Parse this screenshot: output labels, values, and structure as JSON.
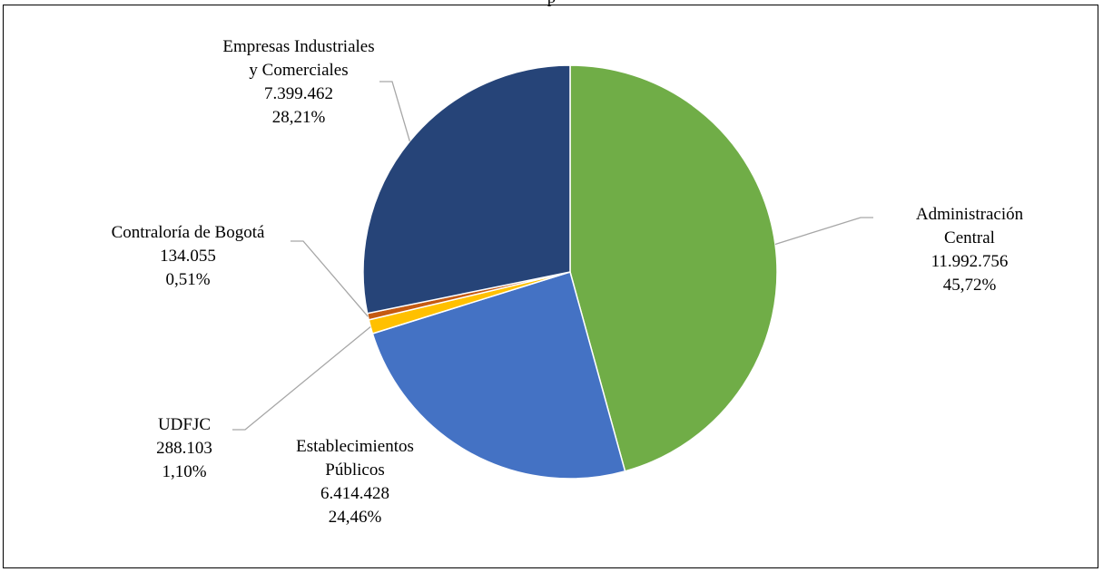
{
  "title_fragment": "p",
  "chart_data": {
    "type": "pie",
    "title": "",
    "start_angle_deg": 0,
    "direction": "clockwise",
    "slices": [
      {
        "label_lines": [
          "Administración",
          "Central"
        ],
        "value": 11992756,
        "value_text": "11.992.756",
        "percent_text": "45,72%",
        "percent": 45.72,
        "color": "#70ad47"
      },
      {
        "label_lines": [
          "Establecimientos",
          "Públicos"
        ],
        "value": 6414428,
        "value_text": "6.414.428",
        "percent_text": "24,46%",
        "percent": 24.46,
        "color": "#4472c4"
      },
      {
        "label_lines": [
          "UDFJC"
        ],
        "value": 288103,
        "value_text": "288.103",
        "percent_text": "1,10%",
        "percent": 1.1,
        "color": "#ffc000"
      },
      {
        "label_lines": [
          "Contraloría de Bogotá"
        ],
        "value": 134055,
        "value_text": "134.055",
        "percent_text": "0,51%",
        "percent": 0.51,
        "color": "#c55a11"
      },
      {
        "label_lines": [
          "Empresas Industriales",
          "y Comerciales"
        ],
        "value": 7399462,
        "value_text": "7.399.462",
        "percent_text": "28,21%",
        "percent": 28.21,
        "color": "#264478"
      }
    ]
  }
}
